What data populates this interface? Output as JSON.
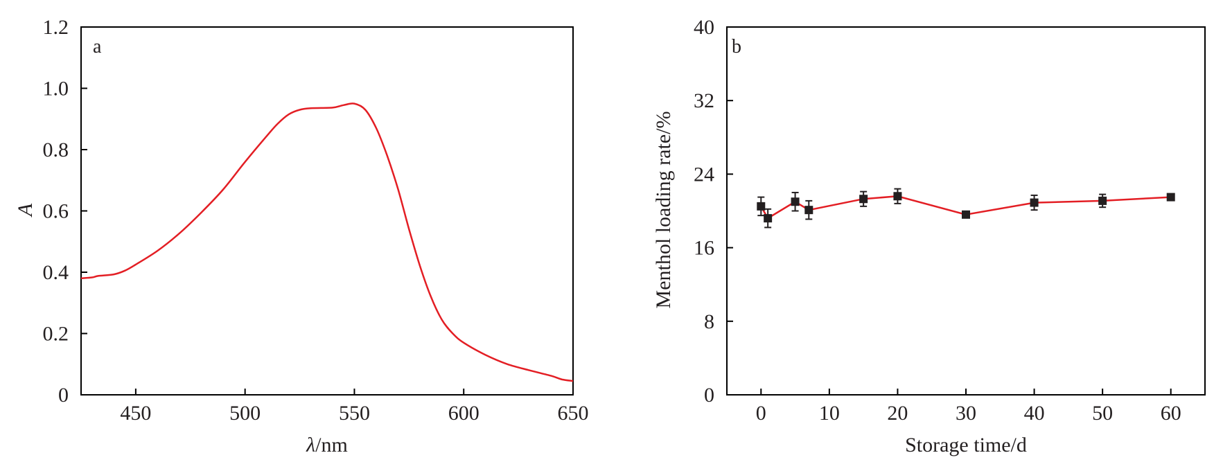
{
  "chart_data": [
    {
      "id": "a",
      "type": "line",
      "panel_label": "a",
      "xlabel_italic": "λ",
      "xlabel_rest": "/nm",
      "ylabel": "A",
      "xlim": [
        425,
        650
      ],
      "ylim": [
        0,
        1.2
      ],
      "x_ticks": [
        450,
        500,
        550,
        600,
        650
      ],
      "x_tick_labels": [
        "450",
        "500",
        "550",
        "600",
        "650"
      ],
      "y_ticks": [
        0,
        0.2,
        0.4,
        0.6,
        0.8,
        1.0,
        1.2
      ],
      "y_tick_labels": [
        "0",
        "0.2",
        "0.4",
        "0.6",
        "0.8",
        "1.0",
        "1.2"
      ],
      "grid": false,
      "color": "#e31e24",
      "x": [
        425,
        430,
        433,
        440,
        445,
        450,
        460,
        470,
        480,
        490,
        500,
        510,
        515,
        520,
        525,
        530,
        540,
        545,
        550,
        555,
        560,
        565,
        570,
        575,
        580,
        585,
        590,
        595,
        600,
        610,
        620,
        630,
        640,
        645,
        650
      ],
      "y": [
        0.38,
        0.383,
        0.388,
        0.393,
        0.405,
        0.425,
        0.47,
        0.527,
        0.595,
        0.67,
        0.76,
        0.845,
        0.885,
        0.915,
        0.93,
        0.935,
        0.937,
        0.945,
        0.95,
        0.93,
        0.87,
        0.78,
        0.67,
        0.54,
        0.42,
        0.32,
        0.245,
        0.2,
        0.17,
        0.13,
        0.1,
        0.08,
        0.062,
        0.05,
        0.045
      ]
    },
    {
      "id": "b",
      "type": "line",
      "panel_label": "b",
      "xlabel": "Storage time/d",
      "ylabel": "Menthol loading rate/%",
      "xlim": [
        -5,
        65
      ],
      "ylim": [
        0,
        40
      ],
      "x_ticks": [
        0,
        10,
        20,
        30,
        40,
        50,
        60
      ],
      "x_tick_labels": [
        "0",
        "10",
        "20",
        "30",
        "40",
        "50",
        "60"
      ],
      "y_ticks": [
        0,
        8,
        16,
        24,
        32,
        40
      ],
      "y_tick_labels": [
        "0",
        "8",
        "16",
        "24",
        "32",
        "40"
      ],
      "grid": false,
      "line_color": "#e31e24",
      "marker_color": "#231f20",
      "x": [
        0,
        1,
        5,
        7,
        15,
        20,
        30,
        40,
        50,
        60
      ],
      "y": [
        20.5,
        19.2,
        21.0,
        20.1,
        21.3,
        21.6,
        19.6,
        20.9,
        21.1,
        21.5
      ],
      "errors": [
        1.0,
        1.0,
        1.0,
        1.0,
        0.8,
        0.8,
        0.3,
        0.8,
        0.7,
        0.3
      ]
    }
  ]
}
